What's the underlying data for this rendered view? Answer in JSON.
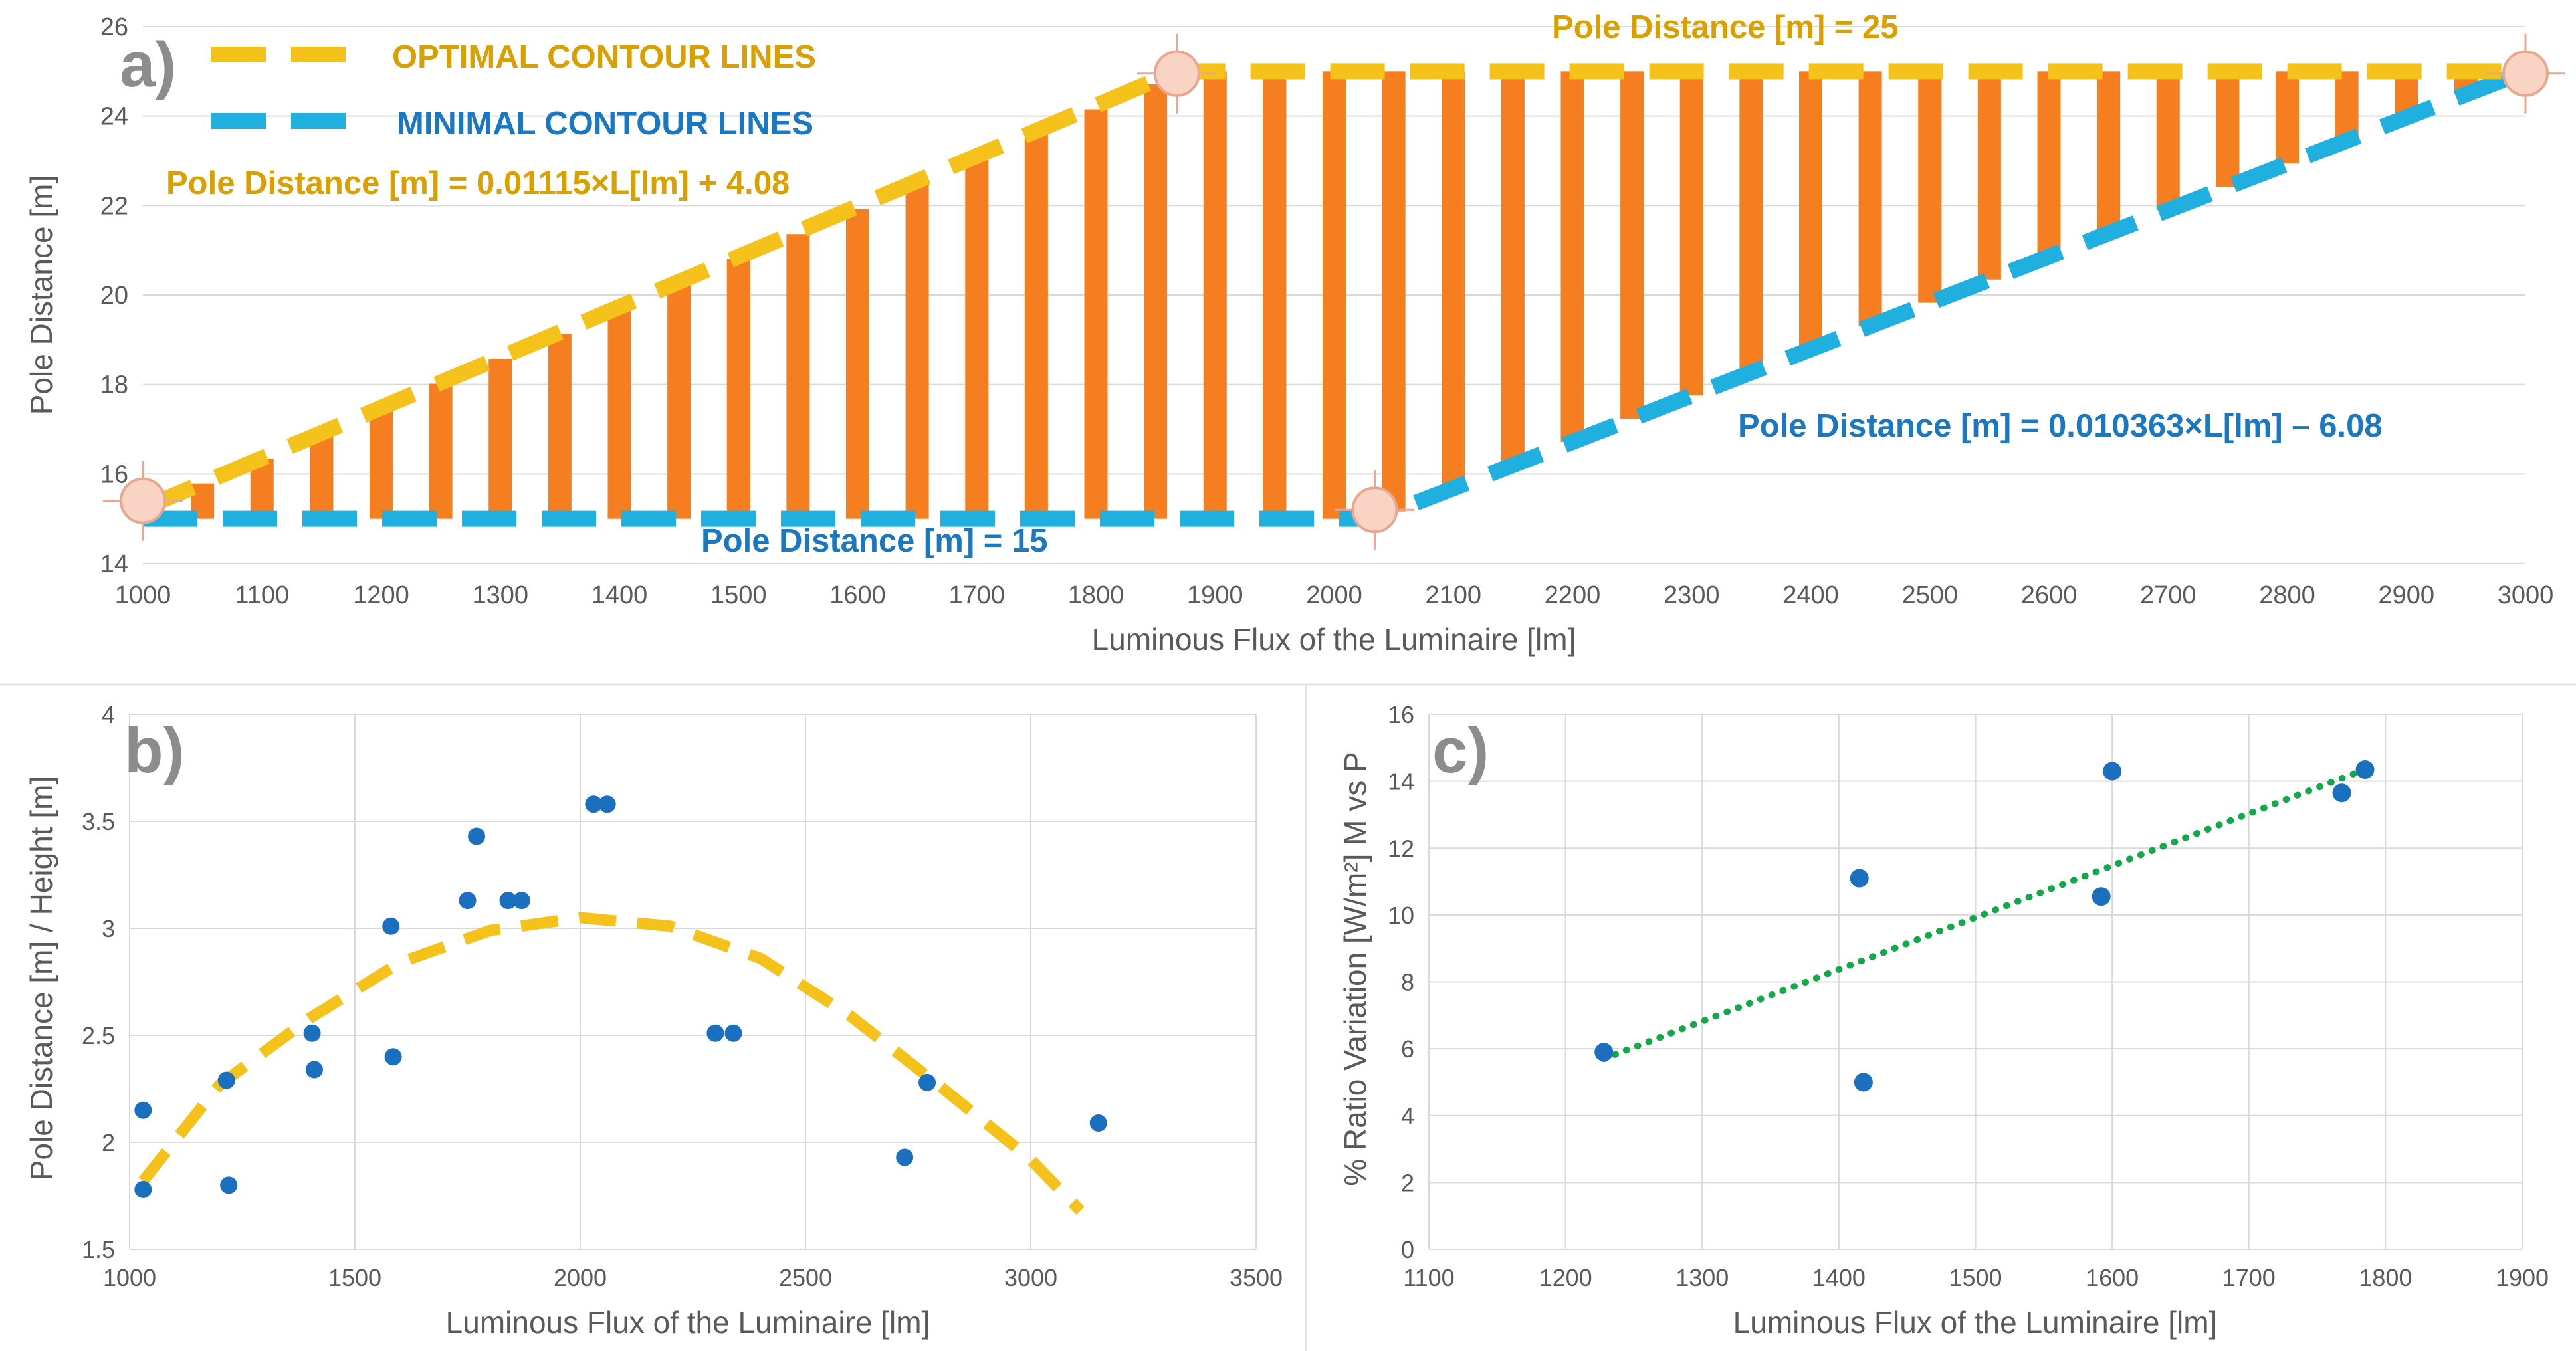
{
  "colors": {
    "bar": "#f47e20",
    "optimal": "#f5c21b",
    "minimal": "#1fb0e0",
    "point": "#1a6fbf",
    "fit_b": "#f5c21b",
    "fit_c": "#13a84a",
    "grid": "#d9d9d9",
    "axis_text": "#595959",
    "optimal_text": "#d9a000",
    "minimal_text": "#1a78c2",
    "panel_letter": "#8c8c8c",
    "marker_fill": "#f9d3c3",
    "marker_stroke": "#e8a890"
  },
  "chart_data": [
    {
      "id": "a",
      "type": "bar",
      "panel_label": "a)",
      "xlabel": "Luminous Flux of the Luminaire [lm]",
      "ylabel": "Pole Distance [m]",
      "xlim": [
        1000,
        3000
      ],
      "ylim": [
        14,
        26
      ],
      "xticks": [
        "1000",
        "1100",
        "1200",
        "1300",
        "1400",
        "1500",
        "1600",
        "1700",
        "1800",
        "1900",
        "2000",
        "2100",
        "2200",
        "2300",
        "2400",
        "2500",
        "2600",
        "2700",
        "2800",
        "2900",
        "3000"
      ],
      "yticks": [
        "14",
        "16",
        "18",
        "20",
        "22",
        "24",
        "26"
      ],
      "legend": [
        {
          "label": "OPTIMAL CONTOUR LINES",
          "role": "optimal"
        },
        {
          "label": "MINIMAL CONTOUR LINES",
          "role": "minimal"
        }
      ],
      "annotations": {
        "optimal_eq": "Pole Distance [m] = 0.01115×L[lm] + 4.08",
        "optimal_const": "Pole Distance [m] = 25",
        "minimal_const": "Pole Distance [m] = 15",
        "minimal_eq": "Pole Distance [m] = 0.010363×L[lm] – 6.08"
      },
      "bars": {
        "x_start": 1050,
        "x_step": 50,
        "count": 39,
        "optimal_slope": 0.01115,
        "optimal_intercept": 4.08,
        "optimal_max": 25,
        "minimal_slope": 0.010363,
        "minimal_intercept": -6.08,
        "minimal_min": 15
      },
      "optimal_line": [
        [
          1000,
          15.23
        ],
        [
          1868,
          25
        ],
        [
          3000,
          25
        ]
      ],
      "minimal_line": [
        [
          1000,
          15
        ],
        [
          2034,
          15
        ],
        [
          2100,
          15.68
        ],
        [
          2900,
          23.97
        ],
        [
          3000,
          25
        ]
      ],
      "break_points": [
        [
          1000,
          15.4
        ],
        [
          1868,
          24.95
        ],
        [
          2034,
          15.2
        ],
        [
          3000,
          24.95
        ]
      ]
    },
    {
      "id": "b",
      "type": "scatter",
      "panel_label": "b)",
      "xlabel": "Luminous Flux of the Luminaire [lm]",
      "ylabel": "Pole Distance [m] / Height [m]",
      "xlim": [
        1000,
        3500
      ],
      "ylim": [
        1.5,
        4
      ],
      "xticks": [
        "1000",
        "1500",
        "2000",
        "2500",
        "3000",
        "3500"
      ],
      "yticks": [
        "1.5",
        "2",
        "2.5",
        "3",
        "3.5",
        "4"
      ],
      "points": [
        [
          1030,
          2.15
        ],
        [
          1030,
          1.78
        ],
        [
          1215,
          2.29
        ],
        [
          1220,
          1.8
        ],
        [
          1405,
          2.51
        ],
        [
          1410,
          2.34
        ],
        [
          1580,
          3.01
        ],
        [
          1585,
          2.4
        ],
        [
          1750,
          3.13
        ],
        [
          1770,
          3.43
        ],
        [
          1840,
          3.13
        ],
        [
          1870,
          3.13
        ],
        [
          2030,
          3.58
        ],
        [
          2060,
          3.58
        ],
        [
          2300,
          2.51
        ],
        [
          2340,
          2.51
        ],
        [
          2720,
          1.93
        ],
        [
          2770,
          2.28
        ],
        [
          3150,
          2.09
        ]
      ],
      "trend": {
        "type": "polynomial",
        "x": [
          1030,
          1200,
          1400,
          1600,
          1800,
          2000,
          2200,
          2400,
          2600,
          2800,
          3000,
          3110
        ],
        "y": [
          1.82,
          2.27,
          2.58,
          2.84,
          2.99,
          3.05,
          3.01,
          2.86,
          2.59,
          2.26,
          1.92,
          1.68
        ]
      }
    },
    {
      "id": "c",
      "type": "scatter",
      "panel_label": "c)",
      "xlabel": "Luminous Flux of the Luminaire [lm]",
      "ylabel": "% Ratio Variation [W/m²] M vs P",
      "xlim": [
        1100,
        1900
      ],
      "ylim": [
        0,
        16
      ],
      "xticks": [
        "1100",
        "1200",
        "1300",
        "1400",
        "1500",
        "1600",
        "1700",
        "1800",
        "1900"
      ],
      "yticks": [
        "0",
        "2",
        "4",
        "6",
        "8",
        "10",
        "12",
        "14",
        "16"
      ],
      "points": [
        [
          1228,
          5.9
        ],
        [
          1415,
          11.1
        ],
        [
          1418,
          5.0
        ],
        [
          1592,
          10.55
        ],
        [
          1600,
          14.3
        ],
        [
          1768,
          13.65
        ],
        [
          1785,
          14.35
        ]
      ],
      "trend": {
        "type": "linear",
        "x": [
          1228,
          1785
        ],
        "y": [
          5.7,
          14.35
        ]
      }
    }
  ]
}
